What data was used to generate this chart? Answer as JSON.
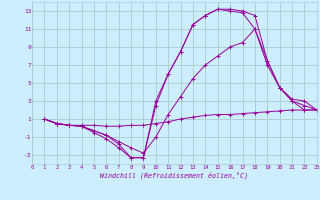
{
  "xlabel": "Windchill (Refroidissement éolien,°C)",
  "background_color": "#cceeff",
  "grid_color": "#aacccc",
  "line_color": "#990099",
  "xlim": [
    0,
    23
  ],
  "ylim": [
    -4,
    14
  ],
  "xticks": [
    0,
    1,
    2,
    3,
    4,
    5,
    6,
    7,
    8,
    9,
    10,
    11,
    12,
    13,
    14,
    15,
    16,
    17,
    18,
    19,
    20,
    21,
    22,
    23
  ],
  "yticks": [
    -3,
    -1,
    1,
    3,
    5,
    7,
    9,
    11,
    13
  ],
  "lines": [
    {
      "x": [
        1,
        2,
        3,
        4,
        5,
        6,
        7,
        8,
        9,
        10,
        11,
        12,
        13,
        14,
        15,
        16,
        17,
        18,
        19,
        20,
        21,
        22,
        23
      ],
      "y": [
        1,
        0.5,
        0.3,
        0.3,
        0.3,
        0.2,
        0.2,
        0.3,
        0.3,
        0.5,
        0.7,
        1.0,
        1.2,
        1.4,
        1.5,
        1.5,
        1.6,
        1.7,
        1.8,
        1.9,
        2.0,
        2.0,
        2.0
      ]
    },
    {
      "x": [
        1,
        2,
        3,
        4,
        5,
        6,
        7,
        8,
        9,
        10,
        11,
        12,
        13,
        14,
        15,
        16,
        17,
        18,
        19,
        20,
        21,
        22,
        23
      ],
      "y": [
        1,
        0.5,
        0.3,
        0.2,
        -0.3,
        -0.8,
        -1.8,
        -3.3,
        -3.3,
        3.0,
        6.0,
        8.5,
        11.5,
        12.5,
        13.2,
        13.0,
        12.8,
        11.0,
        7.0,
        4.5,
        3.0,
        2.0,
        2.0
      ]
    },
    {
      "x": [
        1,
        2,
        3,
        4,
        5,
        6,
        7,
        8,
        9,
        10,
        11,
        12,
        13,
        14,
        15,
        16,
        17,
        18,
        19,
        20,
        21,
        22,
        23
      ],
      "y": [
        1,
        0.5,
        0.3,
        0.2,
        -0.5,
        -1.2,
        -2.2,
        -3.3,
        -3.3,
        2.5,
        6.0,
        8.5,
        11.5,
        12.5,
        13.2,
        13.2,
        13.0,
        12.5,
        7.5,
        4.5,
        3.2,
        3.0,
        2.0
      ]
    },
    {
      "x": [
        1,
        2,
        3,
        4,
        5,
        6,
        7,
        8,
        9,
        10,
        11,
        12,
        13,
        14,
        15,
        16,
        17,
        18,
        19,
        20,
        21,
        22,
        23
      ],
      "y": [
        1,
        0.5,
        0.3,
        0.2,
        -0.3,
        -0.8,
        -1.5,
        -2.2,
        -2.8,
        -1.0,
        1.5,
        3.5,
        5.5,
        7.0,
        8.0,
        9.0,
        9.5,
        11.0,
        7.5,
        4.5,
        3.0,
        2.5,
        2.0
      ]
    }
  ]
}
